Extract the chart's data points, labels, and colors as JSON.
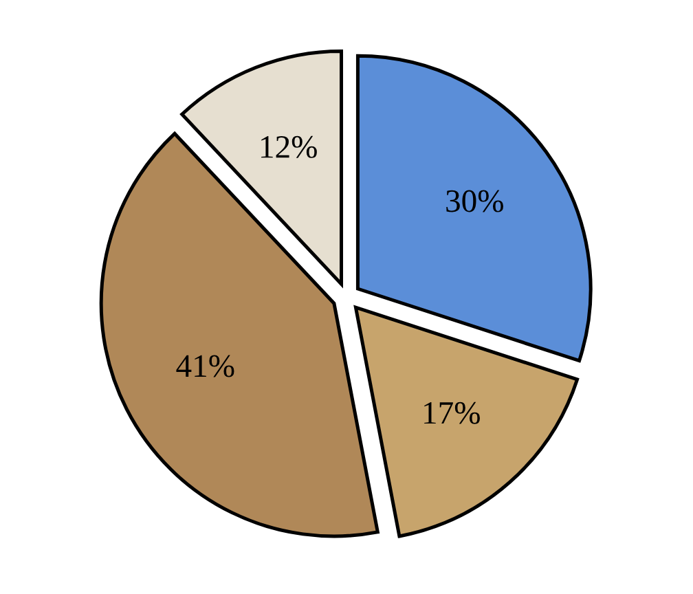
{
  "chart_data": {
    "type": "pie",
    "categories": [
      null,
      null,
      null,
      null
    ],
    "values": [
      30,
      17,
      41,
      12
    ],
    "colors": [
      "#5b8ed8",
      "#c7a46c",
      "#b08858",
      "#e6dfd0"
    ],
    "value_labels": [
      "30%",
      "17%",
      "41%",
      "12%"
    ]
  }
}
